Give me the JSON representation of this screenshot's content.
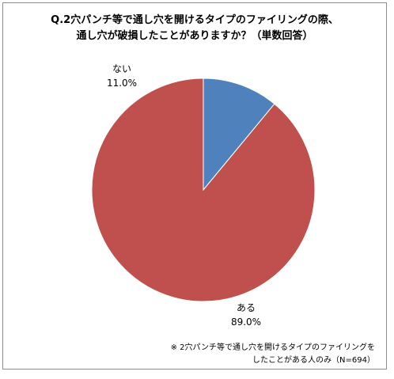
{
  "title_lines": [
    "Q.2穴パンチ等で通し穴を開けるタイプのファイリングの際、",
    "通し穴が破損したことがありますか？（単数回答）"
  ],
  "footnote_lines": [
    "※ 2穴パンチ等で通し穴を開けるタイプのファイリングを",
    "したことがある人のみ（N=694）"
  ],
  "chart_data": {
    "type": "pie",
    "title": "Q.2穴パンチ等で通し穴を開けるタイプのファイリングの際、通し穴が破損したことがありますか？（単数回答）",
    "start_angle_deg": 0,
    "direction": "clockwise",
    "slices": [
      {
        "label": "ない",
        "value": 11.0,
        "value_label": "11.0%",
        "color": "#4f81bd"
      },
      {
        "label": "ある",
        "value": 89.0,
        "value_label": "89.0%",
        "color": "#c0504d"
      }
    ]
  }
}
